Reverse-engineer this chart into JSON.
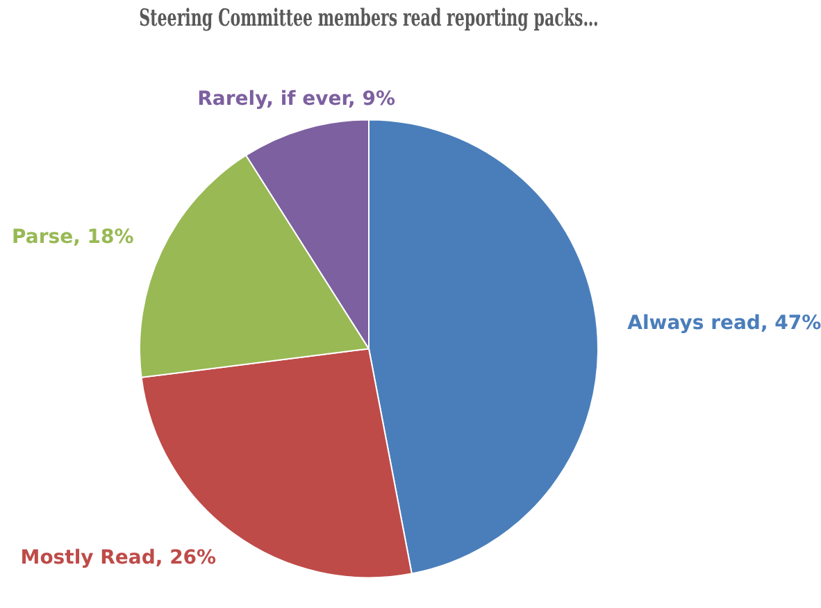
{
  "chart_data": {
    "type": "pie",
    "title": "Steering Committee members read reporting packs…",
    "categories": [
      "Always read",
      "Mostly Read",
      "Parse",
      "Rarely, if ever"
    ],
    "value_labels": [
      "47%",
      "26%",
      "18%",
      "9%"
    ],
    "values": [
      47,
      26,
      18,
      9
    ],
    "colors": [
      "#4a7ebb",
      "#be4b48",
      "#98b954",
      "#7d60a0"
    ],
    "legend": false
  }
}
